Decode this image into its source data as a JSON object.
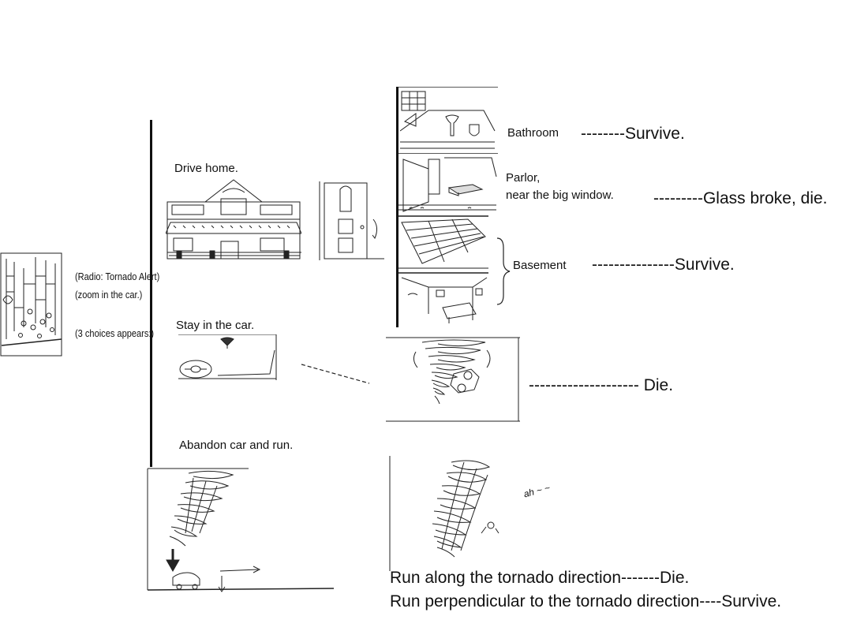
{
  "intro": {
    "radio": "(Radio: Tornado Alert)",
    "zoom": "(zoom in the car.)",
    "choices": "(3 choices appears:)"
  },
  "choices": {
    "drive_home": "Drive home.",
    "stay_car": "Stay in the car.",
    "abandon": "Abandon car and run."
  },
  "rooms": {
    "bathroom": "Bathroom",
    "bathroom_outcome": "--------Survive.",
    "parlor_line1": "Parlor,",
    "parlor_line2": "near the big window.",
    "parlor_outcome": "---------Glass broke, die.",
    "basement": "Basement",
    "basement_outcome": "---------------Survive."
  },
  "car_outcome": "--------------------  Die.",
  "run": {
    "along": "Run along the tornado direction-------Die.",
    "perpendicular": "Run perpendicular to the tornado direction----Survive.",
    "scribble": "ah ~ ~"
  }
}
